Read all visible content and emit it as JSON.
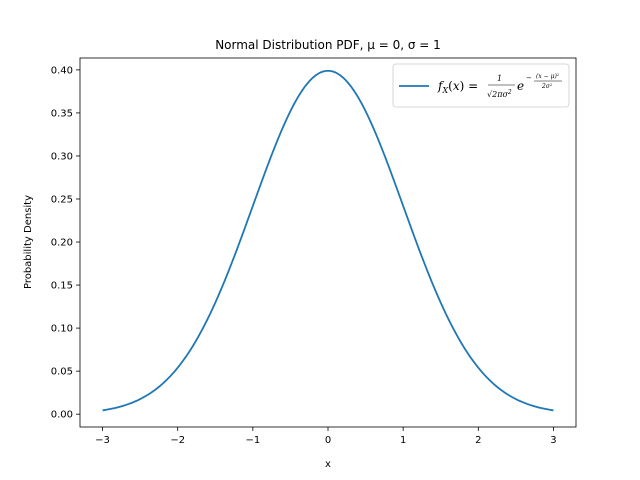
{
  "chart_data": {
    "type": "line",
    "title": "Normal Distribution PDF, μ = 0, σ = 1",
    "xlabel": "x",
    "ylabel": "Probability Density",
    "xlim": [
      -3.3,
      3.3
    ],
    "ylim": [
      -0.0149,
      0.4138
    ],
    "xticks": [
      -3,
      -2,
      -1,
      0,
      1,
      2,
      3
    ],
    "xtick_labels": [
      "−3",
      "−2",
      "−1",
      "0",
      "1",
      "2",
      "3"
    ],
    "yticks": [
      0.0,
      0.05,
      0.1,
      0.15,
      0.2,
      0.25,
      0.3,
      0.35,
      0.4
    ],
    "ytick_labels": [
      "0.00",
      "0.05",
      "0.10",
      "0.15",
      "0.20",
      "0.25",
      "0.30",
      "0.35",
      "0.40"
    ],
    "grid": false,
    "legend_position": "top-right",
    "series": [
      {
        "name": "f_X(x) = 1/√(2πσ²) e^(−(x−μ)²/(2σ²))",
        "color": "#1f77b4",
        "x": [
          -3.0,
          -2.75,
          -2.5,
          -2.25,
          -2.0,
          -1.75,
          -1.5,
          -1.25,
          -1.0,
          -0.75,
          -0.5,
          -0.25,
          0.0,
          0.25,
          0.5,
          0.75,
          1.0,
          1.25,
          1.5,
          1.75,
          2.0,
          2.25,
          2.5,
          2.75,
          3.0
        ],
        "y": [
          0.0044,
          0.0091,
          0.0175,
          0.0317,
          0.054,
          0.0863,
          0.1295,
          0.1826,
          0.242,
          0.3011,
          0.3521,
          0.3867,
          0.3989,
          0.3867,
          0.3521,
          0.3011,
          0.242,
          0.1826,
          0.1295,
          0.0863,
          0.054,
          0.0317,
          0.0175,
          0.0091,
          0.0044
        ]
      }
    ]
  }
}
